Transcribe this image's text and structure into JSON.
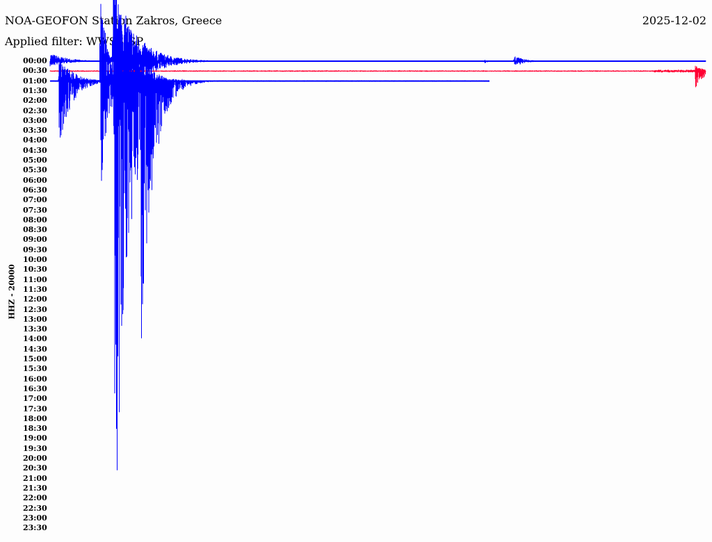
{
  "header": {
    "title": "NOA-GEOFON Station Zakros, Greece",
    "date": "2025-12-02",
    "filter": "Applied filter: WWSS-SP"
  },
  "chart_data": {
    "type": "line",
    "title": "NOA-GEOFON Station Zakros, Greece",
    "channel_label": "HHZ - 20000",
    "row_labels": [
      "00:00",
      "00:30",
      "01:00",
      "01:30",
      "02:00",
      "02:30",
      "03:00",
      "03:30",
      "04:00",
      "04:30",
      "05:00",
      "05:30",
      "06:00",
      "06:30",
      "07:00",
      "07:30",
      "08:00",
      "08:30",
      "09:00",
      "09:30",
      "10:00",
      "10:30",
      "11:00",
      "11:30",
      "12:00",
      "12:30",
      "13:00",
      "13:30",
      "14:00",
      "14:30",
      "15:00",
      "15:30",
      "16:00",
      "16:30",
      "17:00",
      "17:30",
      "18:00",
      "18:30",
      "19:00",
      "19:30",
      "20:00",
      "20:30",
      "21:00",
      "21:30",
      "22:00",
      "22:30",
      "23:00",
      "23:30"
    ],
    "series": [
      {
        "row": "00:00",
        "color": "#0000ff",
        "end_fraction": 1.0
      },
      {
        "row": "00:30",
        "color": "#ff0033",
        "end_fraction": 1.0
      },
      {
        "row": "01:00",
        "color": "#0000ff",
        "end_fraction": 0.67
      }
    ],
    "grid": false
  }
}
